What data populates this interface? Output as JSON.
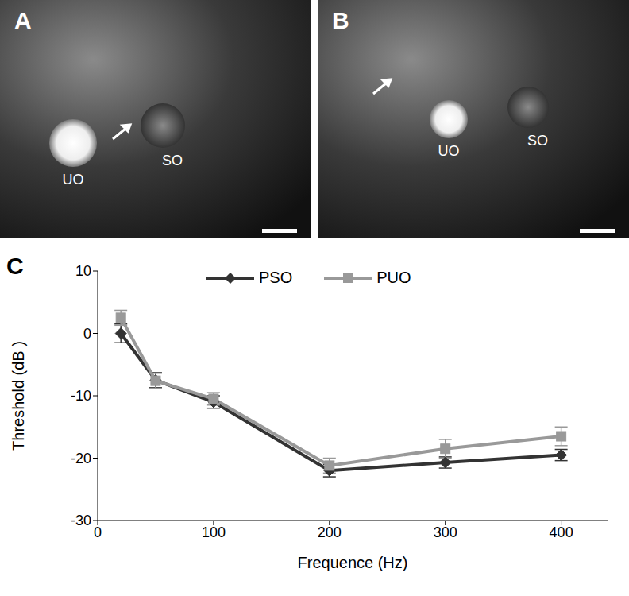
{
  "panels": [
    {
      "label": "A",
      "structures": [
        "UO",
        "SO"
      ]
    },
    {
      "label": "B",
      "structures": [
        "UO",
        "SO"
      ]
    }
  ],
  "chart_data": {
    "type": "line",
    "panel_label": "C",
    "x_label": "Frequence (Hz)",
    "y_label": "Threshold (dB )",
    "xlim": [
      0,
      440
    ],
    "xticks": [
      0,
      100,
      200,
      300,
      400
    ],
    "ylim": [
      -30,
      10
    ],
    "yticks": [
      -30,
      -20,
      -10,
      0,
      10
    ],
    "legend": "top",
    "grid": false,
    "x": [
      20,
      50,
      100,
      200,
      300,
      400
    ],
    "series": [
      {
        "name": "PSO",
        "color": "#333333",
        "marker": "diamond",
        "values": [
          0,
          -7.5,
          -11,
          -22,
          -20.7,
          -19.5
        ],
        "errors": [
          1.5,
          1.2,
          1,
          1,
          0.9,
          0.9
        ]
      },
      {
        "name": "PUO",
        "color": "#999999",
        "marker": "square",
        "values": [
          2.5,
          -7.6,
          -10.5,
          -21.2,
          -18.5,
          -16.5
        ],
        "errors": [
          1.2,
          1.2,
          1,
          1.2,
          1.5,
          1.5
        ]
      }
    ]
  }
}
